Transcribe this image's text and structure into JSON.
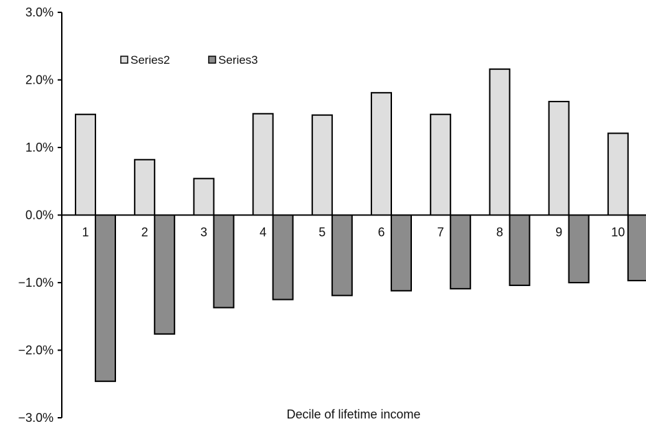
{
  "chart_data": {
    "type": "bar",
    "title": "",
    "xlabel": "Decile of lifetime income",
    "ylabel": "",
    "categories": [
      "1",
      "2",
      "3",
      "4",
      "5",
      "6",
      "7",
      "8",
      "9",
      "10"
    ],
    "series": [
      {
        "name": "Series2",
        "color": "#dedede",
        "values": [
          1.49,
          0.82,
          0.54,
          1.5,
          1.48,
          1.81,
          1.49,
          2.16,
          1.68,
          1.21
        ]
      },
      {
        "name": "Series3",
        "color": "#8c8c8c",
        "values": [
          -2.46,
          -1.76,
          -1.37,
          -1.25,
          -1.19,
          -1.12,
          -1.09,
          -1.04,
          -1.0,
          -0.97
        ]
      }
    ],
    "ylim": [
      -3.0,
      3.0
    ],
    "yticks": [
      "3.0%",
      "2.0%",
      "1.0%",
      "0.0%",
      "−1.0%",
      "−2.0%",
      "−3.0%"
    ],
    "ytick_values": [
      3,
      2,
      1,
      0,
      -1,
      -2,
      -3
    ],
    "value_suffix": "%",
    "legend_position": "top-left",
    "grid": false
  }
}
